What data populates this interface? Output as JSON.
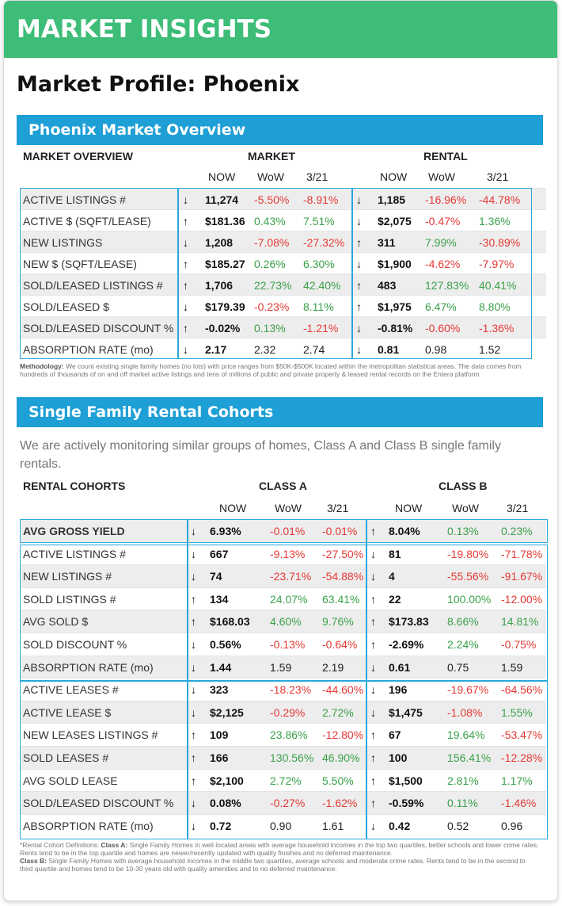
{
  "banner": {
    "title": "MARKET INSIGHTS"
  },
  "page_title": "Market Profile: Phoenix",
  "overview": {
    "section_title": "Phoenix Market Overview",
    "header_label": "MARKET OVERVIEW",
    "group_market": "MARKET",
    "group_rental": "RENTAL",
    "col_now": "NOW",
    "col_wow": "WoW",
    "col_321": "3/21",
    "rows": [
      {
        "label": "ACTIVE LISTINGS #",
        "m_arrow": "↓",
        "m_now": "11,274",
        "m_wow": "-5.50%",
        "m_321": "-8.91%",
        "r_arrow": "↓",
        "r_now": "1,185",
        "r_wow": "-16.96%",
        "r_321": "-44.78%"
      },
      {
        "label": "ACTIVE $ (SQFT/LEASE)",
        "m_arrow": "↑",
        "m_now": "$181.36",
        "m_wow": "0.43%",
        "m_321": "7.51%",
        "r_arrow": "↓",
        "r_now": "$2,075",
        "r_wow": "-0.47%",
        "r_321": "1.36%"
      },
      {
        "label": "NEW LISTINGS",
        "m_arrow": "↓",
        "m_now": "1,208",
        "m_wow": "-7.08%",
        "m_321": "-27.32%",
        "r_arrow": "↑",
        "r_now": "311",
        "r_wow": "7.99%",
        "r_321": "-30.89%"
      },
      {
        "label": "NEW $ (SQFT/LEASE)",
        "m_arrow": "↑",
        "m_now": "$185.27",
        "m_wow": "0.26%",
        "m_321": "6.30%",
        "r_arrow": "↓",
        "r_now": "$1,900",
        "r_wow": "-4.62%",
        "r_321": "-7.97%"
      },
      {
        "label": "SOLD/LEASED LISTINGS #",
        "m_arrow": "↑",
        "m_now": "1,706",
        "m_wow": "22.73%",
        "m_321": "42.40%",
        "r_arrow": "↑",
        "r_now": "483",
        "r_wow": "127.83%",
        "r_321": "40.41%"
      },
      {
        "label": "SOLD/LEASED $",
        "m_arrow": "↓",
        "m_now": "$179.39",
        "m_wow": "-0.23%",
        "m_321": "8.11%",
        "r_arrow": "↑",
        "r_now": "$1,975",
        "r_wow": "6.47%",
        "r_321": "8.80%"
      },
      {
        "label": "SOLD/LEASED DISCOUNT %",
        "m_arrow": "↑",
        "m_now": "-0.02%",
        "m_wow": "0.13%",
        "m_321": "-1.21%",
        "r_arrow": "↓",
        "r_now": "-0.81%",
        "r_wow": "-0.60%",
        "r_321": "-1.36%"
      },
      {
        "label": "ABSORPTION RATE (mo)",
        "m_arrow": "↓",
        "m_now": "2.17",
        "m_wow": "2.32",
        "m_321": "2.74",
        "r_arrow": "↓",
        "r_now": "0.81",
        "r_wow": "0.98",
        "r_321": "1.52"
      }
    ],
    "methodology_label": "Methodology:",
    "methodology_text": " We count existing single family homes (no lots) with price ranges from $50K-$500K located within the metropolitan statistical areas.  The data comes from hundreds of thousands of on and off market active listings and tens of millions of public and private property & leased rental records on the Entera platform"
  },
  "cohorts": {
    "section_title": "Single Family Rental Cohorts",
    "description": "We are actively monitoring similar groups of homes, Class A and Class B single family rentals.",
    "header_label": "RENTAL COHORTS",
    "group_a": "CLASS A",
    "group_b": "CLASS B",
    "col_now": "NOW",
    "col_wow": "WoW",
    "col_321": "3/21",
    "rows": [
      {
        "label": "AVG GROSS YIELD",
        "a_arrow": "↓",
        "a_now": "6.93%",
        "a_wow": "-0.01%",
        "a_321": "-0.01%",
        "b_arrow": "↑",
        "b_now": "8.04%",
        "b_wow": "0.13%",
        "b_321": "0.23%"
      },
      {
        "label": "ACTIVE LISTINGS #",
        "a_arrow": "↓",
        "a_now": "667",
        "a_wow": "-9.13%",
        "a_321": "-27.50%",
        "b_arrow": "↓",
        "b_now": "81",
        "b_wow": "-19.80%",
        "b_321": "-71.78%"
      },
      {
        "label": "NEW LISTINGS #",
        "a_arrow": "↓",
        "a_now": "74",
        "a_wow": "-23.71%",
        "a_321": "-54.88%",
        "b_arrow": "↓",
        "b_now": "4",
        "b_wow": "-55.56%",
        "b_321": "-91.67%"
      },
      {
        "label": "SOLD LISTINGS #",
        "a_arrow": "↑",
        "a_now": "134",
        "a_wow": "24.07%",
        "a_321": "63.41%",
        "b_arrow": "↑",
        "b_now": "22",
        "b_wow": "100.00%",
        "b_321": "-12.00%"
      },
      {
        "label": "AVG SOLD $",
        "a_arrow": "↑",
        "a_now": "$168.03",
        "a_wow": "4.60%",
        "a_321": "9.76%",
        "b_arrow": "↑",
        "b_now": "$173.83",
        "b_wow": "8.66%",
        "b_321": "14.81%"
      },
      {
        "label": "SOLD DISCOUNT %",
        "a_arrow": "↓",
        "a_now": "0.56%",
        "a_wow": "-0.13%",
        "a_321": "-0.64%",
        "b_arrow": "↑",
        "b_now": "-2.69%",
        "b_wow": "2.24%",
        "b_321": "-0.75%"
      },
      {
        "label": "ABSORPTION RATE (mo)",
        "a_arrow": "↓",
        "a_now": "1.44",
        "a_wow": "1.59",
        "a_321": "2.19",
        "b_arrow": "↓",
        "b_now": "0.61",
        "b_wow": "0.75",
        "b_321": "1.59"
      },
      {
        "label": "ACTIVE LEASES #",
        "a_arrow": "↓",
        "a_now": "323",
        "a_wow": "-18.23%",
        "a_321": "-44.60%",
        "b_arrow": "↓",
        "b_now": "196",
        "b_wow": "-19.67%",
        "b_321": "-64.56%"
      },
      {
        "label": "ACTIVE LEASE $",
        "a_arrow": "↓",
        "a_now": "$2,125",
        "a_wow": "-0.29%",
        "a_321": "2.72%",
        "b_arrow": "↓",
        "b_now": "$1,475",
        "b_wow": "-1.08%",
        "b_321": "1.55%"
      },
      {
        "label": "NEW LEASES LISTINGS #",
        "a_arrow": "↑",
        "a_now": "109",
        "a_wow": "23.86%",
        "a_321": "-12.80%",
        "b_arrow": "↑",
        "b_now": "67",
        "b_wow": "19.64%",
        "b_321": "-53.47%"
      },
      {
        "label": "SOLD LEASES #",
        "a_arrow": "↑",
        "a_now": "166",
        "a_wow": "130.56%",
        "a_321": "46.90%",
        "b_arrow": "↑",
        "b_now": "100",
        "b_wow": "156.41%",
        "b_321": "-12.28%"
      },
      {
        "label": "AVG SOLD LEASE",
        "a_arrow": "↑",
        "a_now": "$2,100",
        "a_wow": "2.72%",
        "a_321": "5.50%",
        "b_arrow": "↑",
        "b_now": "$1,500",
        "b_wow": "2.81%",
        "b_321": "1.17%"
      },
      {
        "label": "SOLD/LEASED DISCOUNT %",
        "a_arrow": "↓",
        "a_now": "0.08%",
        "a_wow": "-0.27%",
        "a_321": "-1.62%",
        "b_arrow": "↑",
        "b_now": "-0.59%",
        "b_wow": "0.11%",
        "b_321": "-1.46%"
      },
      {
        "label": "ABSORPTION RATE (mo)",
        "a_arrow": "↓",
        "a_now": "0.72",
        "a_wow": "0.90",
        "a_321": "1.61",
        "b_arrow": "↓",
        "b_now": "0.42",
        "b_wow": "0.52",
        "b_321": "0.96"
      }
    ],
    "definitions_intro": "*Rental Cohort Definitions: ",
    "class_a_label": "Class A:",
    "class_a_text": " Single Family Homes in well located areas with average household incomes in the top two quartiles,  better schools and lower crime rates. Rents tend to be in the top quartile and homes are newer/recently updated with quality finishes and no deferred maintenance.",
    "class_b_label": "Class B:",
    "class_b_text": " Single Family Homes with average household incomes in the middle two quartiles, average schools and moderate crime rates. Rents tend to be in the second to third quartile and homes tend to be  10-30 years old with quality amenities and to no deferred maintenance."
  },
  "colors": {
    "banner": "#3dbd78",
    "section": "#1e9fd6",
    "negative": "#e53935",
    "positive": "#3aa14a",
    "border": "#2aa7dc"
  }
}
